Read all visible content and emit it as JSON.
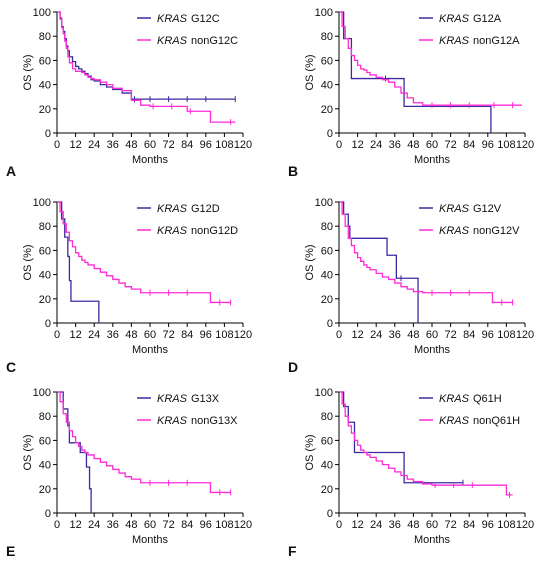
{
  "colors": {
    "mutant": "#3d2aa0",
    "nonmutant": "#ff2bd6",
    "axis": "#000000"
  },
  "chart_data": [
    {
      "type": "line",
      "panel_label": "A",
      "xlabel": "Months",
      "ylabel": "OS (%)",
      "xlim": [
        0,
        120
      ],
      "ylim": [
        0,
        100
      ],
      "x_ticks": [
        0,
        12,
        24,
        36,
        48,
        60,
        72,
        84,
        96,
        108,
        120
      ],
      "y_ticks": [
        0,
        20,
        40,
        60,
        80,
        100
      ],
      "legend_placement": "top-right",
      "series": [
        {
          "name_italic": "KRAS",
          "name": "G12C",
          "color": "#3d2aa0",
          "x": [
            0,
            2,
            3,
            4,
            5,
            6,
            7,
            8,
            10,
            12,
            14,
            16,
            18,
            20,
            22,
            24,
            28,
            32,
            36,
            42,
            48,
            54,
            60,
            72,
            84,
            96,
            115
          ],
          "y": [
            100,
            95,
            88,
            84,
            78,
            72,
            68,
            63,
            59,
            55,
            53,
            51,
            49,
            47,
            44,
            43,
            40,
            38,
            36,
            33,
            28,
            28,
            28,
            28,
            28,
            28,
            28
          ],
          "censor_x": [
            50,
            60,
            72,
            84,
            96,
            115
          ]
        },
        {
          "name_italic": "KRAS",
          "name": "nonG12C",
          "color": "#ff2bd6",
          "x": [
            0,
            2,
            3,
            4,
            5,
            6,
            7,
            8,
            10,
            12,
            14,
            16,
            18,
            20,
            22,
            24,
            28,
            32,
            36,
            42,
            48,
            54,
            60,
            72,
            84,
            96,
            99,
            112,
            115
          ],
          "y": [
            100,
            94,
            87,
            82,
            76,
            70,
            63,
            58,
            53,
            51,
            51,
            50,
            48,
            46,
            45,
            44,
            42,
            40,
            37,
            35,
            27,
            23,
            22,
            22,
            18,
            18,
            9,
            9,
            9
          ],
          "censor_x": [
            62,
            74,
            86,
            112
          ]
        }
      ]
    },
    {
      "type": "line",
      "panel_label": "B",
      "xlabel": "Months",
      "ylabel": "OS (%)",
      "xlim": [
        0,
        120
      ],
      "ylim": [
        0,
        100
      ],
      "x_ticks": [
        0,
        12,
        24,
        36,
        48,
        60,
        72,
        84,
        96,
        108,
        120
      ],
      "y_ticks": [
        0,
        20,
        40,
        60,
        80,
        100
      ],
      "legend_placement": "top-right",
      "series": [
        {
          "name_italic": "KRAS",
          "name": "G12A",
          "color": "#3d2aa0",
          "x": [
            0,
            3,
            8,
            12,
            24,
            36,
            42,
            48,
            60,
            96,
            98
          ],
          "y": [
            100,
            78,
            45,
            45,
            45,
            45,
            22,
            22,
            22,
            22,
            0
          ],
          "censor_x": [
            30
          ]
        },
        {
          "name_italic": "KRAS",
          "name": "nonG12A",
          "color": "#ff2bd6",
          "x": [
            0,
            2,
            4,
            6,
            8,
            10,
            12,
            14,
            16,
            18,
            20,
            24,
            28,
            32,
            36,
            40,
            44,
            48,
            54,
            60,
            72,
            84,
            96,
            108,
            118
          ],
          "y": [
            100,
            88,
            78,
            70,
            64,
            60,
            56,
            53,
            52,
            50,
            48,
            46,
            44,
            42,
            38,
            33,
            29,
            25,
            23,
            23,
            23,
            23,
            23,
            23,
            23
          ],
          "censor_x": [
            60,
            72,
            84,
            100,
            112
          ]
        }
      ]
    },
    {
      "type": "line",
      "panel_label": "C",
      "xlabel": "Months",
      "ylabel": "OS (%)",
      "xlim": [
        0,
        120
      ],
      "ylim": [
        0,
        100
      ],
      "x_ticks": [
        0,
        12,
        24,
        36,
        48,
        60,
        72,
        84,
        96,
        108,
        120
      ],
      "y_ticks": [
        0,
        20,
        40,
        60,
        80,
        100
      ],
      "legend_placement": "top-right",
      "series": [
        {
          "name_italic": "KRAS",
          "name": "G12D",
          "color": "#3d2aa0",
          "x": [
            0,
            3,
            5,
            7,
            8,
            9,
            10,
            12,
            18,
            24,
            27
          ],
          "y": [
            100,
            86,
            71,
            55,
            35,
            18,
            18,
            18,
            18,
            18,
            0
          ],
          "censor_x": []
        },
        {
          "name_italic": "KRAS",
          "name": "nonG12D",
          "color": "#ff2bd6",
          "x": [
            0,
            2,
            4,
            6,
            8,
            10,
            12,
            14,
            16,
            18,
            20,
            24,
            28,
            32,
            36,
            40,
            44,
            48,
            54,
            60,
            72,
            84,
            96,
            99,
            112
          ],
          "y": [
            100,
            92,
            82,
            75,
            68,
            63,
            58,
            55,
            52,
            50,
            48,
            45,
            42,
            39,
            36,
            33,
            30,
            28,
            25,
            25,
            25,
            25,
            25,
            17,
            17
          ],
          "censor_x": [
            60,
            72,
            84,
            105,
            112
          ]
        }
      ]
    },
    {
      "type": "line",
      "panel_label": "D",
      "xlabel": "Months",
      "ylabel": "OS (%)",
      "xlim": [
        0,
        120
      ],
      "ylim": [
        0,
        100
      ],
      "x_ticks": [
        0,
        12,
        24,
        36,
        48,
        60,
        72,
        84,
        96,
        108,
        120
      ],
      "y_ticks": [
        0,
        20,
        40,
        60,
        80,
        100
      ],
      "legend_placement": "top-right",
      "series": [
        {
          "name_italic": "KRAS",
          "name": "G12V",
          "color": "#3d2aa0",
          "x": [
            0,
            3,
            6,
            7,
            30,
            31,
            36,
            37,
            50,
            51
          ],
          "y": [
            100,
            90,
            80,
            70,
            70,
            56,
            56,
            37,
            37,
            0
          ],
          "censor_x": [
            40
          ]
        },
        {
          "name_italic": "KRAS",
          "name": "nonG12V",
          "color": "#ff2bd6",
          "x": [
            0,
            2,
            4,
            6,
            8,
            10,
            12,
            14,
            16,
            18,
            20,
            24,
            28,
            32,
            36,
            40,
            44,
            48,
            54,
            60,
            72,
            84,
            96,
            99,
            112
          ],
          "y": [
            100,
            90,
            80,
            70,
            64,
            58,
            54,
            51,
            48,
            46,
            44,
            41,
            38,
            36,
            33,
            30,
            28,
            26,
            25,
            25,
            25,
            25,
            25,
            17,
            17
          ],
          "censor_x": [
            60,
            72,
            84,
            105,
            112
          ]
        }
      ]
    },
    {
      "type": "line",
      "panel_label": "E",
      "xlabel": "Months",
      "ylabel": "OS (%)",
      "xlim": [
        0,
        120
      ],
      "ylim": [
        0,
        100
      ],
      "x_ticks": [
        0,
        12,
        24,
        36,
        48,
        60,
        72,
        84,
        96,
        108,
        120
      ],
      "y_ticks": [
        0,
        20,
        40,
        60,
        80,
        100
      ],
      "legend_placement": "top-right",
      "series": [
        {
          "name_italic": "KRAS",
          "name": "G13X",
          "color": "#3d2aa0",
          "x": [
            0,
            4,
            7,
            8,
            14,
            15,
            19,
            20,
            21,
            22
          ],
          "y": [
            100,
            86,
            72,
            58,
            58,
            50,
            38,
            38,
            20,
            0
          ],
          "censor_x": []
        },
        {
          "name_italic": "KRAS",
          "name": "nonG13X",
          "color": "#ff2bd6",
          "x": [
            0,
            2,
            4,
            6,
            8,
            10,
            12,
            14,
            16,
            18,
            20,
            24,
            28,
            32,
            36,
            40,
            44,
            48,
            54,
            60,
            72,
            84,
            96,
            99,
            112
          ],
          "y": [
            100,
            92,
            82,
            75,
            68,
            63,
            58,
            55,
            52,
            50,
            48,
            45,
            42,
            39,
            36,
            33,
            30,
            28,
            25,
            25,
            25,
            25,
            25,
            17,
            17
          ],
          "censor_x": [
            60,
            72,
            84,
            105,
            112
          ]
        }
      ]
    },
    {
      "type": "line",
      "panel_label": "F",
      "xlabel": "Months",
      "ylabel": "OS (%)",
      "xlim": [
        0,
        120
      ],
      "ylim": [
        0,
        100
      ],
      "x_ticks": [
        0,
        12,
        24,
        36,
        48,
        60,
        72,
        84,
        96,
        108,
        120
      ],
      "y_ticks": [
        0,
        20,
        40,
        60,
        80,
        100
      ],
      "legend_placement": "top-right",
      "series": [
        {
          "name_italic": "KRAS",
          "name": "Q61H",
          "color": "#3d2aa0",
          "x": [
            0,
            3,
            6,
            7,
            10,
            12,
            24,
            36,
            42,
            48,
            60,
            72,
            80
          ],
          "y": [
            100,
            88,
            75,
            75,
            50,
            50,
            50,
            50,
            25,
            25,
            25,
            25,
            25
          ],
          "censor_x": [
            80
          ]
        },
        {
          "name_italic": "KRAS",
          "name": "nonQ61H",
          "color": "#ff2bd6",
          "x": [
            0,
            2,
            4,
            6,
            8,
            10,
            12,
            14,
            16,
            18,
            20,
            24,
            28,
            32,
            36,
            40,
            44,
            48,
            54,
            60,
            72,
            84,
            96,
            108,
            112
          ],
          "y": [
            100,
            90,
            80,
            72,
            66,
            60,
            56,
            52,
            50,
            48,
            46,
            43,
            40,
            37,
            34,
            31,
            28,
            26,
            24,
            23,
            23,
            23,
            23,
            15,
            15
          ],
          "censor_x": [
            62,
            74,
            86,
            110
          ]
        }
      ]
    }
  ]
}
